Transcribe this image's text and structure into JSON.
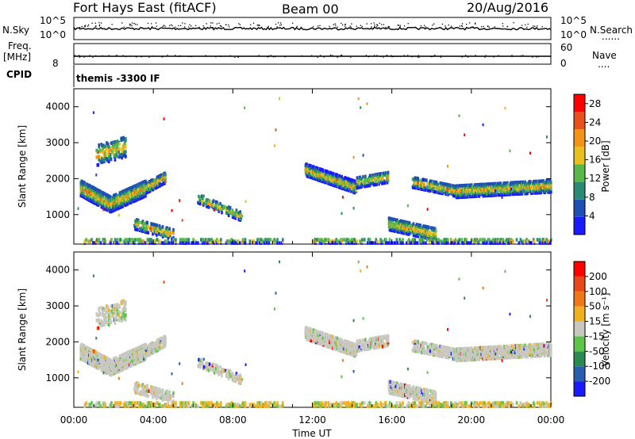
{
  "header": {
    "station": "Fort Hays East (fitACF)",
    "beam": "Beam 00",
    "date": "20/Aug/2016"
  },
  "noise_panel": {
    "left_label": "N.Sky",
    "right_label": "N.Search",
    "tick_top": "10^5",
    "tick_bottom": "10^0"
  },
  "freq_panel": {
    "left_label_line1": "Freq.",
    "left_label_line2": "[MHz]",
    "left_tick_top": "",
    "left_tick_bottom": "8",
    "right_label": "Nave",
    "right_tick_top": "60",
    "right_tick_bottom": "0"
  },
  "cpid_panel": {
    "label": "CPID",
    "value": "themis -3300 IF"
  },
  "chart_data": [
    {
      "type": "heatmap",
      "name": "power",
      "ylabel": "Slant Range [km]",
      "xlabel": "",
      "ylim": [
        180,
        4500
      ],
      "yticks": [
        "1000",
        "2000",
        "3000",
        "4000"
      ],
      "colorbar_label": "Power [dB]",
      "colorbar_ticks": [
        "4",
        "8",
        "12",
        "16",
        "20",
        "24",
        "28"
      ],
      "colorbar_range": [
        0,
        30
      ],
      "colors": [
        "#1a1aff",
        "#1f4fb5",
        "#2b8a72",
        "#59b84a",
        "#e8c020",
        "#f29418",
        "#e8501c",
        "#ff0000"
      ]
    },
    {
      "type": "heatmap",
      "name": "velocity",
      "ylabel": "Slant Range [km]",
      "xlabel": "Time UT",
      "ylim": [
        180,
        4500
      ],
      "yticks": [
        "1000",
        "2000",
        "3000",
        "4000"
      ],
      "colorbar_label": "Velocity [m s⁻¹]",
      "colorbar_ticks": [
        "200",
        "100",
        "50",
        "15",
        "-15",
        "-50",
        "-100",
        "-200"
      ],
      "colors": [
        "#1a1aff",
        "#2a5fb0",
        "#2b8a50",
        "#5ec44a",
        "#c8c8c0",
        "#f0b020",
        "#f07818",
        "#e84818",
        "#ff0000"
      ]
    }
  ],
  "time_axis": {
    "xlim_hours": [
      0,
      24
    ],
    "ticks": [
      "00:00",
      "04:00",
      "08:00",
      "12:00",
      "16:00",
      "20:00",
      "00:00"
    ],
    "label": "Time UT"
  }
}
